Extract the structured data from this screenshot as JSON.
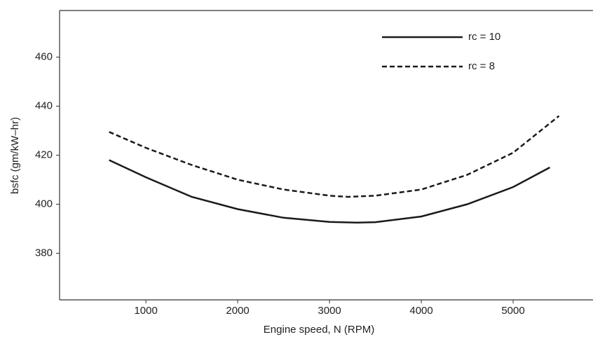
{
  "chart_data": {
    "type": "line",
    "x_label": "Engine speed, N (RPM)",
    "y_label": "bsfc (gm/kW–hr)",
    "xlim": [
      60,
      5870
    ],
    "xticks": [
      1000,
      2000,
      3000,
      4000,
      5000
    ],
    "ylim": [
      361,
      479
    ],
    "yticks": [
      380,
      400,
      420,
      440,
      460
    ],
    "legend": "upper right",
    "series": [
      {
        "name": "rc = 10",
        "color": "#1a1a1a",
        "dash": "solid",
        "x": [
          600,
          1000,
          1500,
          2000,
          2500,
          3000,
          3300,
          3500,
          4000,
          4500,
          5000,
          5400
        ],
        "values": [
          418,
          411,
          403,
          398,
          394.5,
          392.8,
          392.5,
          392.7,
          395,
          400,
          407,
          415
        ]
      },
      {
        "name": "rc = 8",
        "color": "#1a1a1a",
        "dash": "dashed",
        "x": [
          600,
          1000,
          1500,
          2000,
          2500,
          3000,
          3200,
          3500,
          4000,
          4500,
          5000,
          5500
        ],
        "values": [
          429.5,
          423,
          416,
          410,
          406,
          403.5,
          403,
          403.5,
          406,
          412,
          421,
          436
        ]
      }
    ]
  }
}
